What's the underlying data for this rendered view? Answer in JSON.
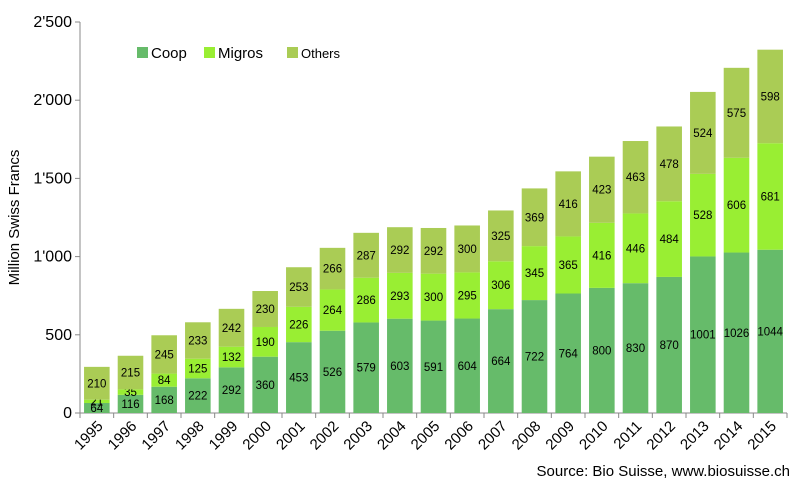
{
  "chart_data": {
    "type": "bar",
    "stacked": true,
    "categories": [
      "1995",
      "1996",
      "1997",
      "1998",
      "1999",
      "2000",
      "2001",
      "2002",
      "2003",
      "2004",
      "2005",
      "2006",
      "2007",
      "2008",
      "2009",
      "2010",
      "2011",
      "2012",
      "2013",
      "2014",
      "2015"
    ],
    "series": [
      {
        "name": "Coop",
        "color": "#66bb6a",
        "values": [
          64,
          116,
          168,
          222,
          292,
          360,
          453,
          526,
          579,
          603,
          591,
          604,
          664,
          722,
          764,
          800,
          830,
          870,
          1001,
          1026,
          1044
        ]
      },
      {
        "name": "Migros",
        "color": "#99ee33",
        "values": [
          21,
          35,
          84,
          125,
          132,
          190,
          226,
          264,
          286,
          293,
          300,
          295,
          306,
          345,
          365,
          416,
          446,
          484,
          528,
          606,
          681
        ]
      },
      {
        "name": "Others",
        "color": "#aacc55",
        "values": [
          210,
          215,
          245,
          233,
          242,
          230,
          253,
          266,
          287,
          292,
          292,
          300,
          325,
          369,
          416,
          423,
          463,
          478,
          524,
          575,
          598
        ]
      }
    ],
    "ylabel": "Million Swiss Francs",
    "xlabel": "",
    "ylim": [
      0,
      2500
    ],
    "yticks": [
      0,
      500,
      1000,
      1500,
      2000,
      2500
    ],
    "ytick_labels": [
      "0",
      "500",
      "1'000",
      "1'500",
      "2'000",
      "2'500"
    ],
    "grid": false,
    "legend_position": "top-left",
    "source": "Source: Bio Suisse, www.biosuisse.ch"
  }
}
